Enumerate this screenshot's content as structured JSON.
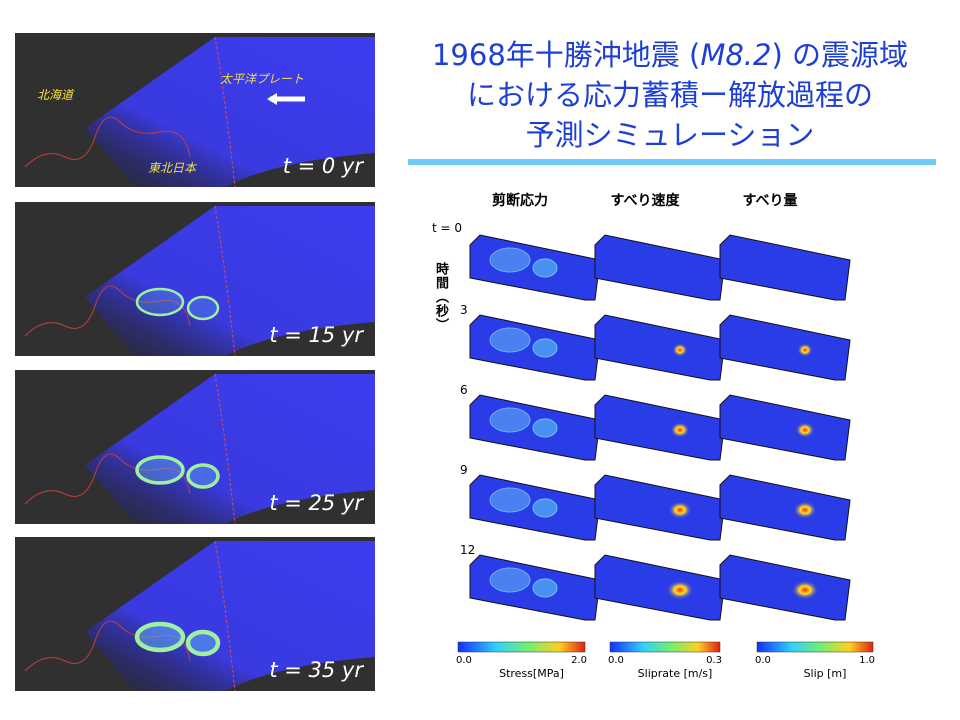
{
  "title": {
    "line1": [
      "1968年十勝沖地震 (",
      "M8.2",
      ") の震源域"
    ],
    "line2": "における応力蓄積ー解放過程の",
    "line3": "予測シミュレーション"
  },
  "left_panels": [
    {
      "label": "t = 0 yr",
      "places": [
        "北海道",
        "太平洋プレート",
        "東北日本"
      ]
    },
    {
      "label": "t = 15 yr"
    },
    {
      "label": "t = 25 yr"
    },
    {
      "label": "t = 35 yr"
    }
  ],
  "simulation": {
    "columns": [
      "剪断応力",
      "すべり速度",
      "すべり量"
    ],
    "rows": [
      "t = 0",
      "3",
      "6",
      "9",
      "12"
    ],
    "row_axis_label": "時間（秒）",
    "colorbars": [
      {
        "min": "0.0",
        "max": "2.0",
        "name": "Stress[MPa]"
      },
      {
        "min": "0.0",
        "max": "0.3",
        "name": "Sliprate [m/s]"
      },
      {
        "min": "0.0",
        "max": "1.0",
        "name": "Slip [m]"
      }
    ]
  }
}
